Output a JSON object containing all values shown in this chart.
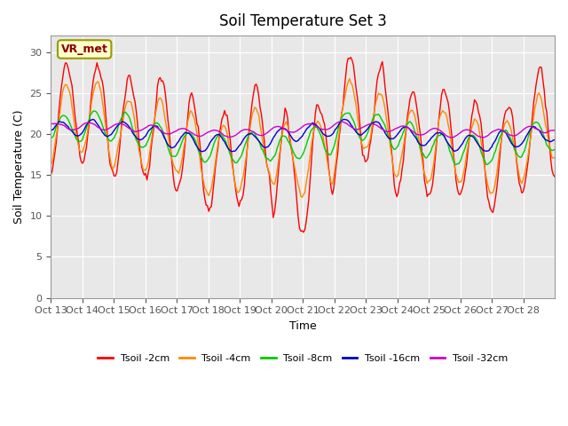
{
  "title": "Soil Temperature Set 3",
  "xlabel": "Time",
  "ylabel": "Soil Temperature (C)",
  "ylim": [
    0,
    32
  ],
  "yticks": [
    0,
    5,
    10,
    15,
    20,
    25,
    30
  ],
  "bg_color": "#e8e8e8",
  "outer_bg": "#ffffff",
  "annotation_text": "VR_met",
  "annotation_bg": "#ffffcc",
  "annotation_border": "#999900",
  "series_colors": [
    "#ff0000",
    "#ff8800",
    "#00cc00",
    "#0000cc",
    "#cc00cc"
  ],
  "series_labels": [
    "Tsoil -2cm",
    "Tsoil -4cm",
    "Tsoil -8cm",
    "Tsoil -16cm",
    "Tsoil -32cm"
  ],
  "xtick_labels": [
    "Oct 13",
    "Oct 14",
    "Oct 15",
    "Oct 16",
    "Oct 17",
    "Oct 18",
    "Oct 19",
    "Oct 20",
    "Oct 21",
    "Oct 22",
    "Oct 23",
    "Oct 24",
    "Oct 25",
    "Oct 26",
    "Oct 27",
    "Oct 28"
  ],
  "n_days": 16,
  "seed": 42
}
